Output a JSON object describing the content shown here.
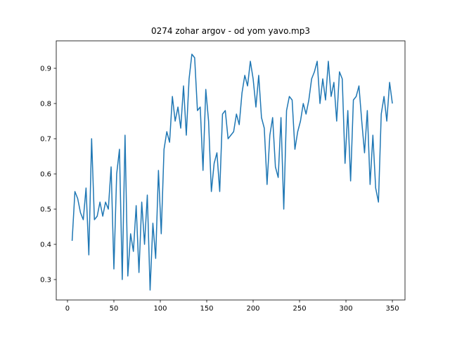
{
  "chart_data": {
    "type": "line",
    "title": "0274 zohar argov - od yom yavo.mp3",
    "x": [
      5,
      8,
      11,
      14,
      17,
      20,
      23,
      26,
      29,
      32,
      35,
      38,
      41,
      44,
      47,
      50,
      53,
      56,
      59,
      62,
      65,
      68,
      71,
      74,
      77,
      80,
      83,
      86,
      89,
      92,
      95,
      98,
      101,
      104,
      107,
      110,
      113,
      116,
      119,
      122,
      125,
      128,
      131,
      134,
      137,
      140,
      143,
      146,
      149,
      152,
      155,
      158,
      161,
      164,
      167,
      170,
      173,
      176,
      179,
      182,
      185,
      188,
      191,
      194,
      197,
      200,
      203,
      206,
      209,
      212,
      215,
      218,
      221,
      224,
      227,
      230,
      233,
      236,
      239,
      242,
      245,
      248,
      251,
      254,
      257,
      260,
      263,
      266,
      269,
      272,
      275,
      278,
      281,
      284,
      287,
      290,
      293,
      296,
      299,
      302,
      305,
      308,
      311,
      314,
      317,
      320,
      323,
      326,
      329,
      332,
      335,
      338,
      341,
      344,
      347,
      350
    ],
    "series": [
      {
        "color": "#1f77b4",
        "values": [
          0.41,
          0.55,
          0.53,
          0.49,
          0.47,
          0.56,
          0.37,
          0.7,
          0.47,
          0.48,
          0.52,
          0.48,
          0.52,
          0.5,
          0.62,
          0.33,
          0.6,
          0.67,
          0.3,
          0.71,
          0.31,
          0.43,
          0.38,
          0.51,
          0.32,
          0.52,
          0.4,
          0.54,
          0.27,
          0.46,
          0.36,
          0.61,
          0.43,
          0.67,
          0.72,
          0.69,
          0.82,
          0.75,
          0.79,
          0.73,
          0.85,
          0.71,
          0.87,
          0.94,
          0.93,
          0.78,
          0.79,
          0.61,
          0.84,
          0.75,
          0.55,
          0.63,
          0.66,
          0.55,
          0.77,
          0.78,
          0.7,
          0.71,
          0.72,
          0.77,
          0.74,
          0.83,
          0.88,
          0.85,
          0.92,
          0.87,
          0.79,
          0.88,
          0.76,
          0.73,
          0.57,
          0.71,
          0.76,
          0.62,
          0.59,
          0.76,
          0.5,
          0.78,
          0.82,
          0.81,
          0.67,
          0.72,
          0.75,
          0.8,
          0.77,
          0.81,
          0.87,
          0.89,
          0.92,
          0.8,
          0.87,
          0.81,
          0.92,
          0.82,
          0.86,
          0.75,
          0.89,
          0.87,
          0.63,
          0.78,
          0.58,
          0.81,
          0.82,
          0.85,
          0.75,
          0.66,
          0.78,
          0.57,
          0.71,
          0.56,
          0.52,
          0.77,
          0.82,
          0.75,
          0.86,
          0.8
        ]
      }
    ],
    "xlim": [
      -12.1,
      363.6
    ],
    "ylim": [
      0.242,
      0.978
    ],
    "xticks": [
      0,
      50,
      100,
      150,
      200,
      250,
      300,
      350
    ],
    "yticks": [
      0.3,
      0.4,
      0.5,
      0.6,
      0.7,
      0.8,
      0.9
    ]
  }
}
